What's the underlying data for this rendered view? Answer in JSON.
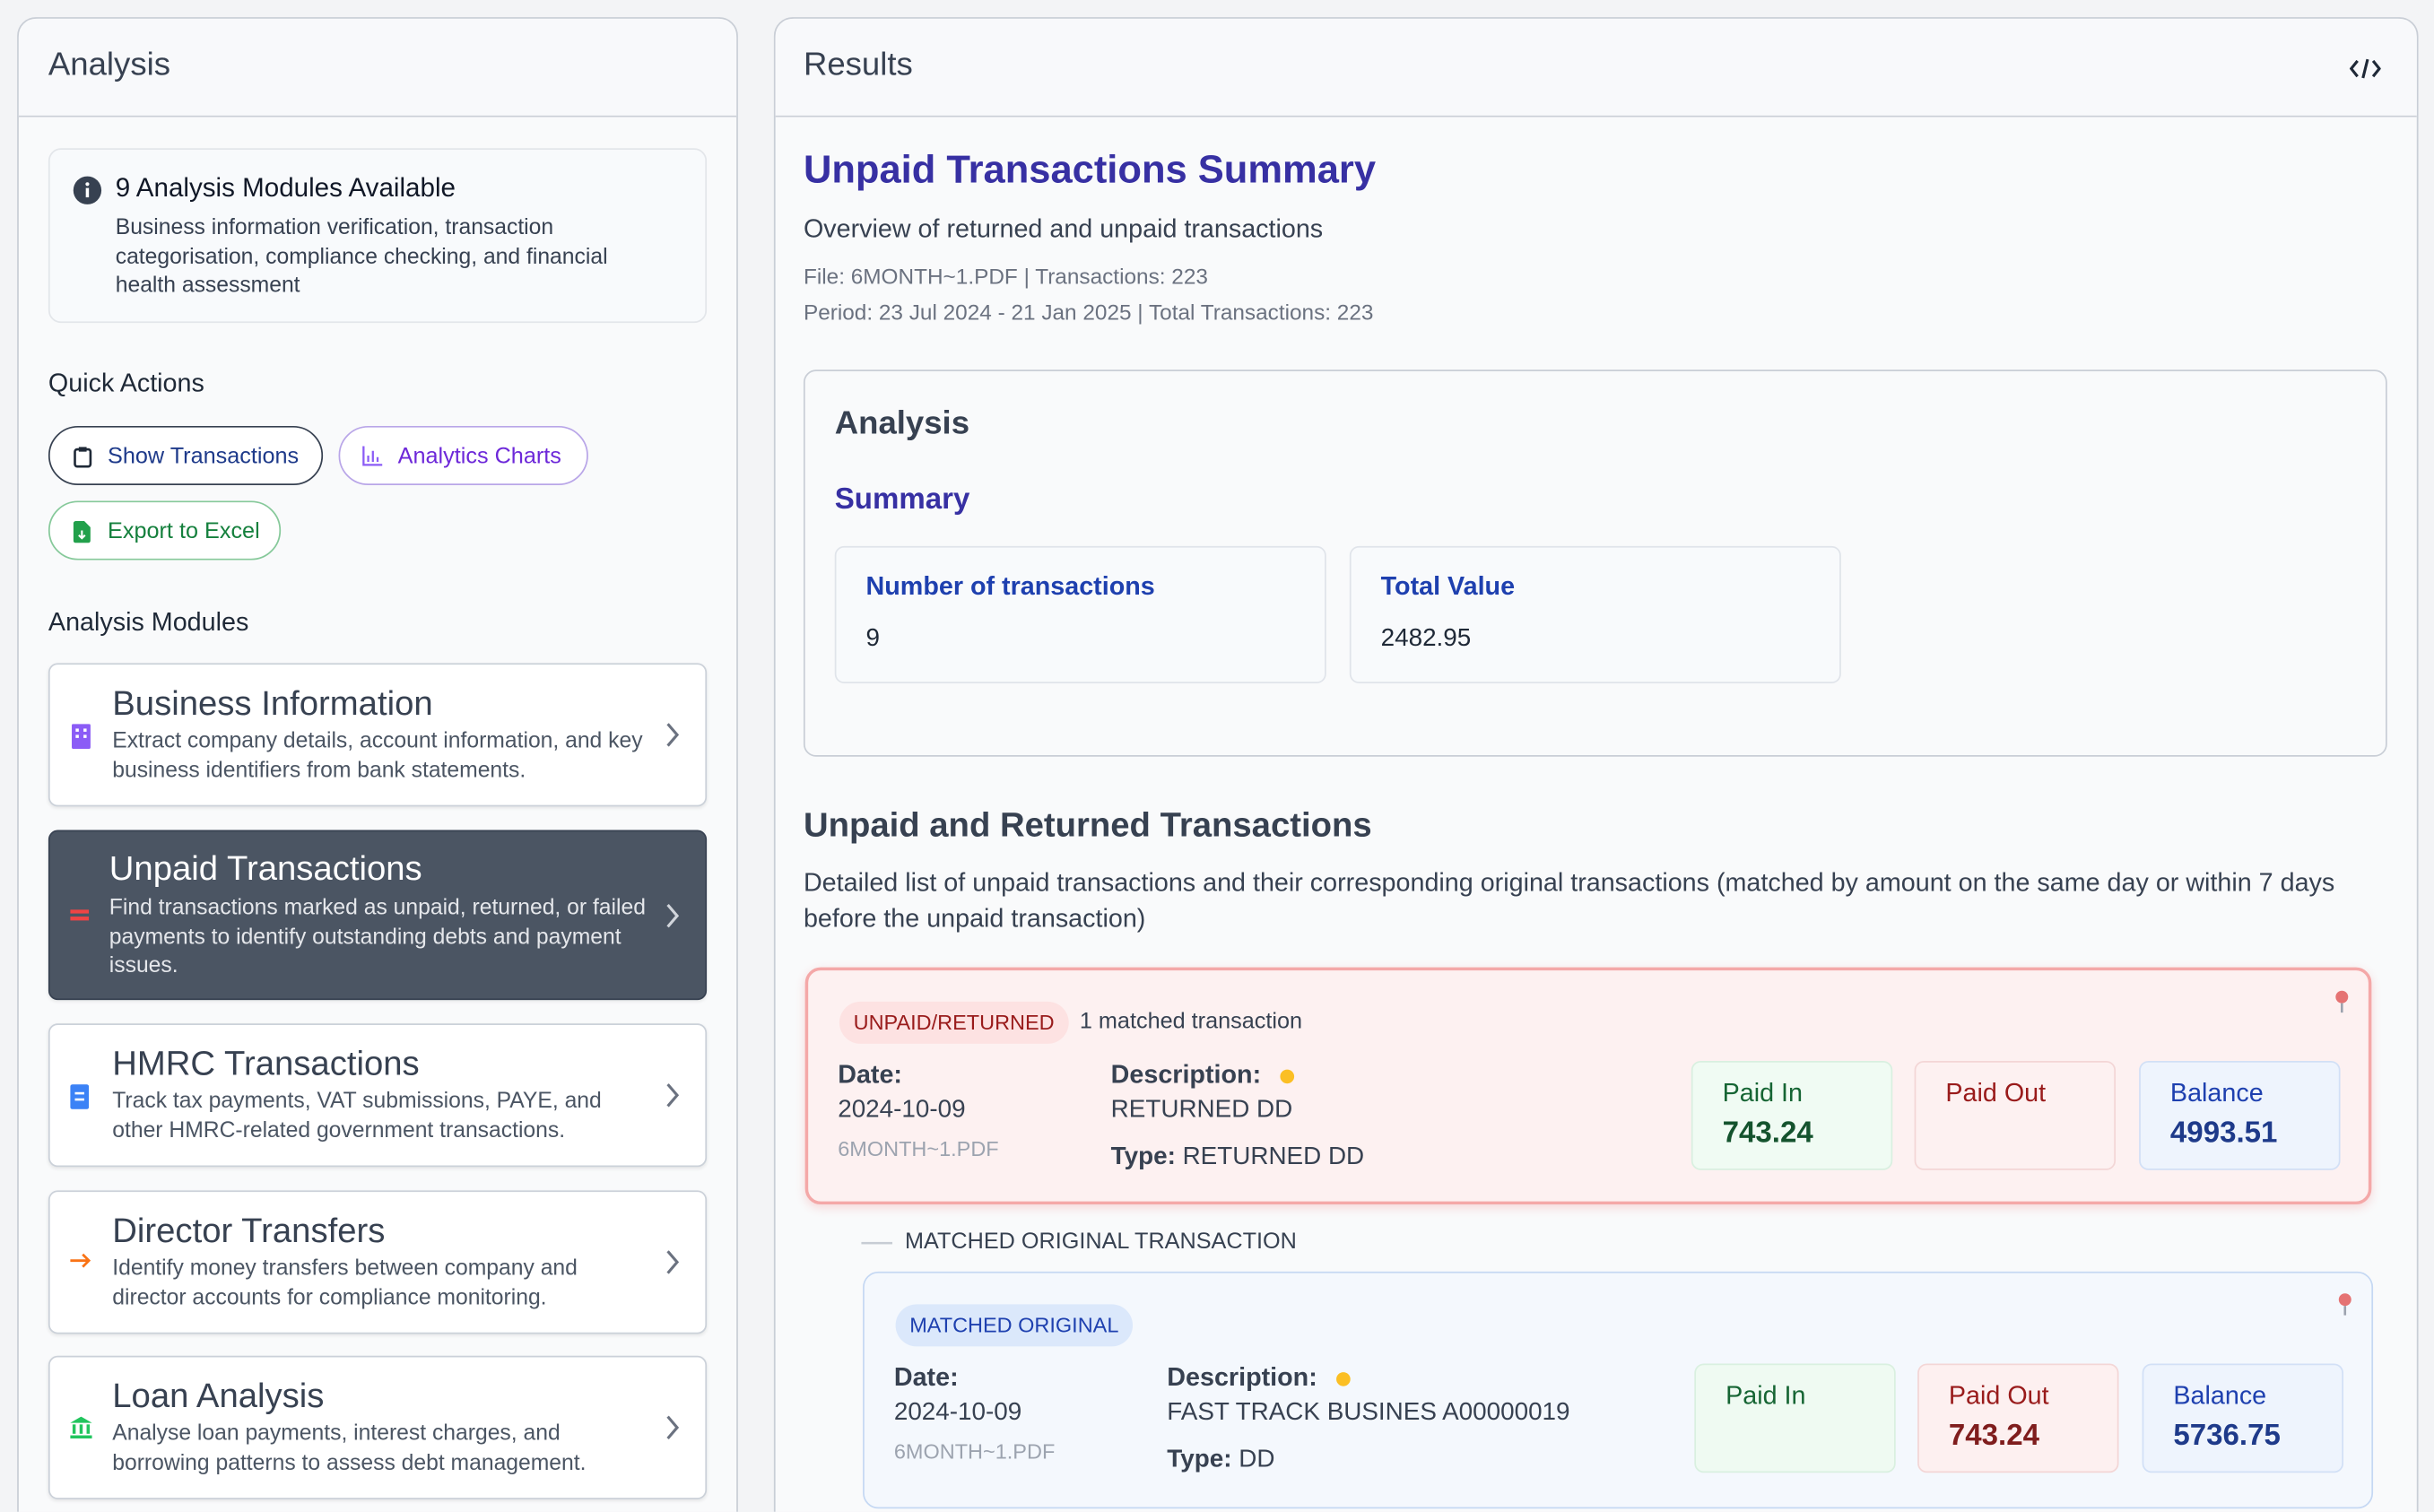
{
  "analysis_panel": {
    "title": "Analysis",
    "info": {
      "title": "9 Analysis Modules Available",
      "text": "Business information verification, transaction categorisation, compliance checking, and financial health assessment"
    },
    "quick_actions": {
      "title": "Quick Actions",
      "buttons": [
        "Show Transactions",
        "Analytics Charts",
        "Export to Excel"
      ]
    },
    "modules": {
      "title": "Analysis Modules",
      "items": [
        {
          "name": "Business Information",
          "description": "Extract company details, account information, and key business identifiers from bank statements."
        },
        {
          "name": "Unpaid Transactions",
          "description": "Find transactions marked as unpaid, returned, or failed payments to identify outstanding debts and payment issues."
        },
        {
          "name": "HMRC Transactions",
          "description": "Track tax payments, VAT submissions, PAYE, and other HMRC-related government transactions."
        },
        {
          "name": "Director Transfers",
          "description": "Identify money transfers between company and director accounts for compliance monitoring."
        },
        {
          "name": "Loan Analysis",
          "description": "Analyse loan payments, interest charges, and borrowing patterns to assess debt management."
        }
      ]
    }
  },
  "results_panel": {
    "title": "Results",
    "summary_title": "Unpaid Transactions Summary",
    "subtitle": "Overview of returned and unpaid transactions",
    "file_line": "File: 6MONTH~1.PDF | Transactions: 223",
    "period_line": "Period: 23 Jul 2024 - 21 Jan 2025 | Total Transactions: 223",
    "analysis_card": {
      "title": "Analysis",
      "summary_title": "Summary",
      "stats": [
        {
          "label": "Number of transactions",
          "value": 9
        },
        {
          "label": "Total Value",
          "value": 2482.95
        }
      ]
    },
    "unpaid_section": {
      "title": "Unpaid and Returned Transactions",
      "description": "Detailed list of unpaid transactions and their corresponding original transactions (matched by amount on the same day or within 7 days before the unpaid transaction)"
    },
    "matched_divider": "MATCHED ORIGINAL TRANSACTION",
    "transactions": [
      {
        "badge": "UNPAID/RETURNED",
        "note": "1 matched transaction",
        "date_label": "Date:",
        "date": "2024-10-09",
        "file": "6MONTH~1.PDF",
        "description_label": "Description:",
        "description": "RETURNED DD",
        "type_label": "Type:",
        "type": "RETURNED DD",
        "paid_in_label": "Paid In",
        "paid_in": 743.24,
        "paid_out_label": "Paid Out",
        "paid_out": null,
        "balance_label": "Balance",
        "balance": 4993.51
      },
      {
        "badge": "MATCHED ORIGINAL",
        "date_label": "Date:",
        "date": "2024-10-09",
        "file": "6MONTH~1.PDF",
        "description_label": "Description:",
        "description": "FAST TRACK BUSINES A00000019",
        "type_label": "Type:",
        "type": "DD",
        "paid_in_label": "Paid In",
        "paid_in": null,
        "paid_out_label": "Paid Out",
        "paid_out": 743.24,
        "balance_label": "Balance",
        "balance": 5736.75
      }
    ]
  }
}
